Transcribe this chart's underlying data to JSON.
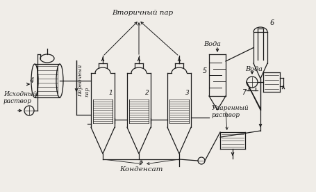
{
  "bg_color": "#f0ede8",
  "line_color": "#1a1a1a",
  "labels": {
    "vtorpar": "Вторичный пар",
    "voda1": "Вода",
    "voda2": "Вода",
    "kondensат": "Конденсат",
    "ishodny": "Исходный\nраствор",
    "uparenny": "Упаренный\nраствор",
    "pervpar": "Первичный\nпар",
    "n1": "1",
    "n2": "2",
    "n3": "3",
    "n4": "4",
    "n5": "5",
    "n6": "6",
    "n7": "7"
  }
}
